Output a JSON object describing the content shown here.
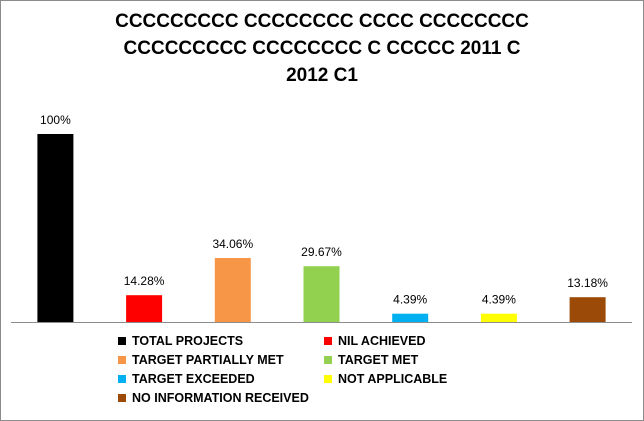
{
  "chart_data": {
    "type": "bar",
    "title_lines": [
      "CCCCCCCCC CCCCCCCC CCCC CCCCCCCC",
      "CCCCCCCCC CCCCCCCC C CCCCC 2011 C",
      "2012 C1"
    ],
    "categories": [
      "TOTAL PROJECTS",
      "NIL ACHIEVED",
      "TARGET PARTIALLY MET",
      "TARGET MET",
      "TARGET EXCEEDED",
      "NOT APPLICABLE",
      "NO INFORMATION RECEIVED"
    ],
    "values": [
      100,
      14.28,
      34.06,
      29.67,
      4.39,
      4.39,
      13.18
    ],
    "data_labels": [
      "100%",
      "14.28%",
      "34.06%",
      "29.67%",
      "4.39%",
      "4.39%",
      "13.18%"
    ],
    "colors": [
      "#000000",
      "#ff0000",
      "#f79646",
      "#92d050",
      "#00b0f0",
      "#ffff00",
      "#9c4a08"
    ],
    "ylim": [
      0,
      100
    ],
    "xlabel": "",
    "ylabel": "",
    "grid": false,
    "legend_position": "bottom"
  }
}
